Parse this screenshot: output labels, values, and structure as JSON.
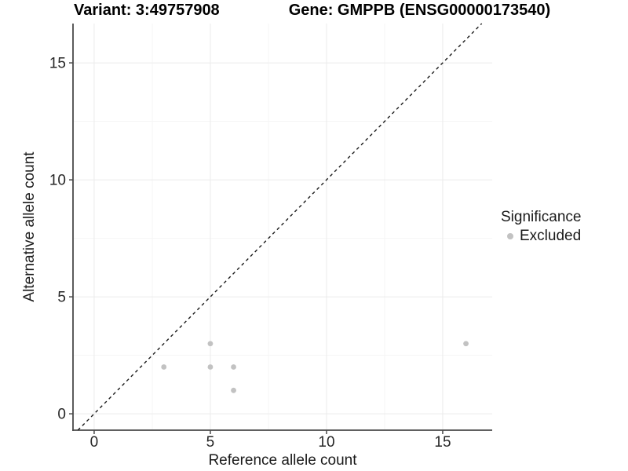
{
  "chart_data": {
    "type": "scatter",
    "title_left": "Variant: 3:49757908",
    "title_right": "Gene: GMPPB (ENSG00000173540)",
    "xlabel": "Reference allele count",
    "ylabel": "Alternative allele count",
    "xlim": [
      -0.91,
      17.13
    ],
    "ylim": [
      -0.7,
      16.68
    ],
    "xticks": [
      0,
      5,
      10,
      15
    ],
    "yticks": [
      0,
      5,
      10,
      15
    ],
    "xminor": [
      2.5,
      7.5,
      12.5
    ],
    "yminor": [
      2.5,
      7.5,
      12.5
    ],
    "grid": "major+minor",
    "reference_line": {
      "type": "identity",
      "style": "dashed",
      "color": "#1a1a1a"
    },
    "series": [
      {
        "name": "Excluded",
        "color": "#c2c2c2",
        "points": [
          [
            3,
            2
          ],
          [
            5,
            2
          ],
          [
            5,
            3
          ],
          [
            6,
            1
          ],
          [
            6,
            2
          ],
          [
            16,
            3
          ]
        ]
      }
    ],
    "legend": {
      "title": "Significance",
      "position": "right",
      "items": [
        {
          "label": "Excluded",
          "color": "#c2c2c2"
        }
      ]
    },
    "colors": {
      "grid_major": "#ebebeb",
      "grid_minor": "#f5f5f5",
      "axis": "#4a4a4a",
      "tick_text": "#262626",
      "title_text": "#000000"
    }
  }
}
